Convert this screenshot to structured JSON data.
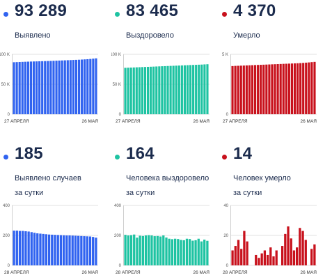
{
  "chart_data": [
    {
      "type": "bar",
      "headline": "93 289",
      "label_lines": [
        "Выявлено"
      ],
      "color": "#3063f0",
      "dot_color": "#3063f0",
      "y_ticks": [
        "100 K",
        "50 K",
        "0"
      ],
      "ylim": [
        0,
        100000
      ],
      "x_start_label": "27 АПРЕЛЯ",
      "x_end_label": "26 МАЯ",
      "values": [
        86800,
        87000,
        87200,
        87400,
        87600,
        87800,
        87950,
        88100,
        88250,
        88400,
        88550,
        88700,
        88850,
        89000,
        89200,
        89400,
        89600,
        89800,
        90000,
        90200,
        90400,
        90600,
        90800,
        91000,
        91300,
        91600,
        91900,
        92300,
        92800,
        93289
      ]
    },
    {
      "type": "bar",
      "headline": "83 465",
      "label_lines": [
        "Выздоровело"
      ],
      "color": "#1ec3a2",
      "dot_color": "#1ec3a2",
      "y_ticks": [
        "100 K",
        "50 K",
        "0"
      ],
      "ylim": [
        0,
        100000
      ],
      "x_start_label": "27 АПРЕЛЯ",
      "x_end_label": "26 МАЯ",
      "values": [
        77500,
        77700,
        77900,
        78100,
        78300,
        78500,
        78700,
        78900,
        79100,
        79300,
        79500,
        79700,
        79900,
        80100,
        80300,
        80500,
        80700,
        80900,
        81100,
        81300,
        81500,
        81700,
        81900,
        82100,
        82300,
        82500,
        82700,
        82900,
        83200,
        83465
      ]
    },
    {
      "type": "bar",
      "headline": "4 370",
      "label_lines": [
        "Умерло"
      ],
      "color": "#c8111c",
      "dot_color": "#c8111c",
      "y_ticks": [
        "5 K",
        "0"
      ],
      "ylim": [
        0,
        5000
      ],
      "x_start_label": "27 АПРЕЛЯ",
      "x_end_label": "26 МАЯ",
      "values": [
        4020,
        4035,
        4045,
        4055,
        4065,
        4075,
        4085,
        4095,
        4105,
        4115,
        4125,
        4135,
        4145,
        4155,
        4165,
        4175,
        4185,
        4195,
        4205,
        4215,
        4225,
        4235,
        4245,
        4255,
        4270,
        4285,
        4305,
        4325,
        4350,
        4370
      ]
    },
    {
      "type": "bar",
      "headline": "185",
      "label_lines": [
        "Выявлено случаев",
        "за сутки"
      ],
      "color": "#3063f0",
      "dot_color": "#3063f0",
      "y_ticks": [
        "400",
        "200",
        "0"
      ],
      "ylim": [
        0,
        400
      ],
      "x_start_label": "28 АПРЕЛЯ",
      "x_end_label": "26 МАЯ",
      "values": [
        232,
        232,
        230,
        230,
        228,
        226,
        222,
        218,
        214,
        212,
        210,
        208,
        206,
        205,
        204,
        203,
        202,
        201,
        200,
        200,
        199,
        198,
        197,
        196,
        195,
        194,
        193,
        190,
        185
      ]
    },
    {
      "type": "bar",
      "headline": "164",
      "label_lines": [
        "Человека выздоровело",
        "за сутки"
      ],
      "color": "#1ec3a2",
      "dot_color": "#1ec3a2",
      "y_ticks": [
        "400",
        "200",
        "0"
      ],
      "ylim": [
        0,
        400
      ],
      "x_start_label": "28 АПРЕЛЯ",
      "x_end_label": "26 МАЯ",
      "values": [
        204,
        200,
        202,
        206,
        185,
        198,
        196,
        200,
        202,
        200,
        195,
        196,
        193,
        200,
        186,
        178,
        175,
        178,
        176,
        170,
        168,
        178,
        176,
        165,
        168,
        178,
        160,
        172,
        164
      ]
    },
    {
      "type": "bar",
      "headline": "14",
      "label_lines": [
        "Человек умерло",
        "за сутки"
      ],
      "color": "#c8111c",
      "dot_color": "#c8111c",
      "y_ticks": [
        "40",
        "20",
        "0"
      ],
      "ylim": [
        0,
        40
      ],
      "x_start_label": "28 АПРЕЛЯ",
      "x_end_label": "26 МАЯ",
      "values": [
        10,
        13,
        17,
        11,
        23,
        16,
        0,
        0,
        7,
        5,
        8,
        10,
        7,
        12,
        6,
        10,
        0,
        13,
        21,
        26,
        18,
        10,
        12,
        25,
        23,
        17,
        0,
        11,
        14
      ]
    }
  ]
}
